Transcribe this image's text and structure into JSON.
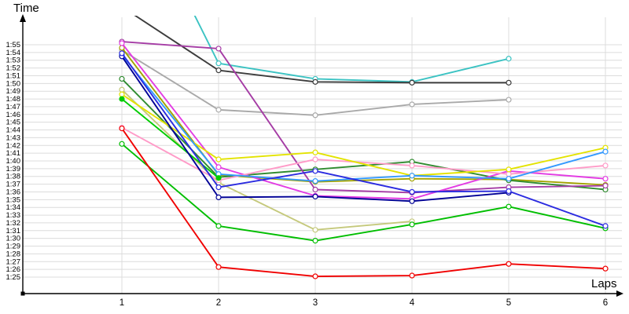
{
  "chart_data": {
    "type": "line",
    "title": "",
    "ylabel": "Time",
    "xlabel": "Laps",
    "x_tick_labels": [
      "1",
      "2",
      "3",
      "4",
      "5",
      "6"
    ],
    "y_tick_labels": [
      "1:55",
      "1:54",
      "1:53",
      "1:52",
      "1:51",
      "1:50",
      "1:49",
      "1:48",
      "1:47",
      "1:46",
      "1:45",
      "1:44",
      "1:43",
      "1:42",
      "1:41",
      "1:40",
      "1:39",
      "1:38",
      "1:37",
      "1:36",
      "1:35",
      "1:34",
      "1:33",
      "1:32",
      "1:31",
      "1:30",
      "1:29",
      "1:28",
      "1:27",
      "1:26",
      "1:25"
    ],
    "y_tick_seconds": [
      115,
      114,
      113,
      112,
      111,
      110,
      109,
      108,
      107,
      106,
      105,
      104,
      103,
      102,
      101,
      100,
      99,
      98,
      97,
      96,
      95,
      94,
      93,
      92,
      91,
      90,
      89,
      88,
      87,
      86,
      85
    ],
    "ylim_seconds": [
      85,
      115
    ],
    "xlim_laps": [
      1,
      6
    ],
    "grid": true,
    "legend": "none",
    "marker_style": "open-circle-white-fill",
    "note": "Series have no visible legend; names are by line color. Cyan and black series enter from above the axis range on lap 1 (values estimated from visible slope, flagged off_scale).",
    "series": [
      {
        "name": "gray",
        "color": "#A9A9A9",
        "laps": [
          1,
          2,
          3,
          4,
          5
        ],
        "seconds": [
          114.3,
          106.6,
          105.9,
          107.3,
          107.9
        ],
        "times": [
          "1:54.3",
          "1:46.6",
          "1:45.9",
          "1:47.3",
          "1:47.9"
        ]
      },
      {
        "name": "khaki",
        "color": "#C5C97C",
        "laps": [
          1,
          2,
          3,
          4
        ],
        "seconds": [
          109.2,
          97.2,
          91.1,
          92.2
        ],
        "times": [
          "1:49.2",
          "1:37.2",
          "1:31.1",
          "1:32.2"
        ]
      },
      {
        "name": "olive",
        "color": "#A3A300",
        "laps": [
          1,
          2,
          3,
          4,
          5,
          6
        ],
        "seconds": [
          114.6,
          98.2,
          97.3,
          97.7,
          97.6,
          96.9
        ],
        "times": [
          "1:54.6",
          "1:38.2",
          "1:37.3",
          "1:37.7",
          "1:37.6",
          "1:36.9"
        ]
      },
      {
        "name": "dark-green",
        "color": "#2F8B2F",
        "laps": [
          1,
          2,
          3,
          4,
          5,
          6
        ],
        "seconds": [
          110.6,
          97.9,
          98.9,
          99.9,
          97.5,
          96.3
        ],
        "times": [
          "1:50.6",
          "1:37.9",
          "1:38.9",
          "1:39.9",
          "1:37.5",
          "1:36.3"
        ]
      },
      {
        "name": "cyan",
        "color": "#3CC3C3",
        "laps": [
          1,
          2,
          3,
          4,
          5
        ],
        "seconds": [
          137.6,
          112.6,
          110.6,
          110.2,
          113.2
        ],
        "times": [
          "~2:18 (off scale)",
          "1:52.6",
          "1:50.6",
          "1:50.2",
          "1:53.2"
        ],
        "lap1_off_scale": true
      },
      {
        "name": "black",
        "color": "#3C3C3C",
        "laps": [
          1,
          2,
          3,
          4,
          5
        ],
        "seconds": [
          119.9,
          111.7,
          110.2,
          110.1,
          110.1
        ],
        "times": [
          "~2:00 (off scale)",
          "1:51.7",
          "1:50.2",
          "1:50.1",
          "1:50.1"
        ],
        "lap1_off_scale": true
      },
      {
        "name": "purple",
        "color": "#A53CA5",
        "laps": [
          1,
          2,
          3,
          4,
          5,
          6
        ],
        "seconds": [
          115.4,
          114.5,
          96.3,
          95.9,
          96.6,
          96.8
        ],
        "times": [
          "1:55.4",
          "1:54.5",
          "1:36.3",
          "1:35.9",
          "1:36.6",
          "1:36.8"
        ]
      },
      {
        "name": "magenta",
        "color": "#E33CE3",
        "laps": [
          1,
          2,
          3,
          4,
          5,
          6
        ],
        "seconds": [
          115.2,
          99.2,
          95.5,
          95.1,
          98.7,
          97.7
        ],
        "times": [
          "1:55.2",
          "1:39.2",
          "1:35.5",
          "1:35.1",
          "1:38.7",
          "1:37.7"
        ]
      },
      {
        "name": "pink",
        "color": "#FF9BC8",
        "laps": [
          1,
          2,
          3,
          4,
          5,
          6
        ],
        "seconds": [
          104.3,
          97.5,
          100.2,
          99.4,
          98.3,
          99.4
        ],
        "times": [
          "1:44.3",
          "1:37.5",
          "1:40.2",
          "1:39.4",
          "1:38.3",
          "1:39.4"
        ]
      },
      {
        "name": "yellow",
        "color": "#E3E300",
        "laps": [
          1,
          2,
          3,
          4,
          5,
          6
        ],
        "seconds": [
          108.6,
          100.2,
          101.1,
          98.1,
          98.9,
          101.7
        ],
        "times": [
          "1:48.6",
          "1:40.2",
          "1:41.1",
          "1:38.1",
          "1:38.9",
          "1:41.7"
        ]
      },
      {
        "name": "azure",
        "color": "#3399FF",
        "laps": [
          1,
          2,
          3,
          4,
          5,
          6
        ],
        "seconds": [
          113.7,
          98.3,
          97.4,
          98.1,
          97.7,
          101.2
        ],
        "times": [
          "1:53.7",
          "1:38.3",
          "1:37.4",
          "1:38.1",
          "1:37.7",
          "1:41.2"
        ]
      },
      {
        "name": "bright-green",
        "color": "#00CC00",
        "laps": [
          1,
          2
        ],
        "seconds": [
          108.0,
          97.8
        ],
        "times": [
          "1:48.0",
          "1:37.8"
        ],
        "marker": "filled"
      },
      {
        "name": "green",
        "color": "#00BE00",
        "laps": [
          1,
          2,
          3,
          4,
          5,
          6
        ],
        "seconds": [
          102.2,
          91.6,
          89.7,
          91.8,
          94.1,
          91.3
        ],
        "times": [
          "1:42.2",
          "1:31.6",
          "1:29.7",
          "1:31.8",
          "1:34.1",
          "1:31.3"
        ]
      },
      {
        "name": "navy",
        "color": "#000096",
        "laps": [
          1,
          2,
          3,
          4,
          5
        ],
        "seconds": [
          113.5,
          95.3,
          95.4,
          94.8,
          95.9
        ],
        "times": [
          "1:53.5",
          "1:35.3",
          "1:35.4",
          "1:34.8",
          "1:35.9"
        ]
      },
      {
        "name": "blue",
        "color": "#2B2BE0",
        "laps": [
          1,
          2,
          3,
          4,
          5,
          6
        ],
        "seconds": [
          113.9,
          96.6,
          98.7,
          96.0,
          96.1,
          91.6
        ],
        "times": [
          "1:53.9",
          "1:36.6",
          "1:38.7",
          "1:36.0",
          "1:36.1",
          "1:31.6"
        ]
      },
      {
        "name": "red",
        "color": "#F00000",
        "laps": [
          1,
          2,
          3,
          4,
          5,
          6
        ],
        "seconds": [
          104.2,
          86.3,
          85.1,
          85.2,
          86.7,
          86.1
        ],
        "times": [
          "1:44.2",
          "1:26.3",
          "1:25.1",
          "1:25.2",
          "1:26.7",
          "1:26.1"
        ]
      }
    ]
  }
}
